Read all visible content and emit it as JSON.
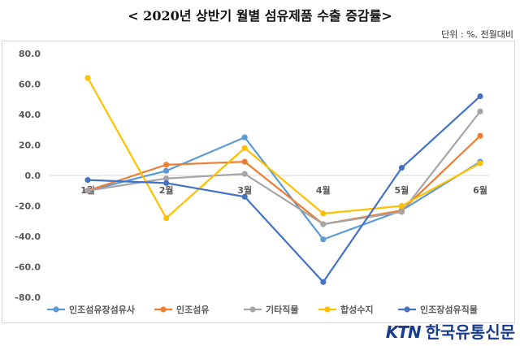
{
  "chart_data": {
    "type": "line",
    "title": "< 2020년 상반기 월별 섬유제품 수출 증감률>",
    "unit_note": "단위 : %, 전월대비",
    "categories": [
      "1월",
      "2월",
      "3월",
      "4월",
      "5월",
      "6월"
    ],
    "ylim": [
      -80,
      80
    ],
    "yticks": [
      "80.0",
      "60.0",
      "40.0",
      "20.0",
      "0.0",
      "-20.0",
      "-40.0",
      "-60.0",
      "-80.0"
    ],
    "ytick_values": [
      80,
      60,
      40,
      20,
      0,
      -20,
      -40,
      -60,
      -80
    ],
    "grid": false,
    "legend_position": "bottom",
    "series": [
      {
        "name": "인조섬유장섬유사",
        "color": "#5B9BD5",
        "values": [
          -10,
          3,
          25,
          -42,
          -23,
          9
        ]
      },
      {
        "name": "인조섬유",
        "color": "#ED7D31",
        "values": [
          -10,
          7,
          9,
          -32,
          -23,
          26
        ]
      },
      {
        "name": "기타직물",
        "color": "#A5A5A5",
        "values": [
          -10,
          -2,
          1,
          -32,
          -24,
          42
        ]
      },
      {
        "name": "합성수지",
        "color": "#FFC000",
        "values": [
          64,
          -28,
          18,
          -25,
          -20,
          8
        ]
      },
      {
        "name": "인조장섬유직물",
        "color": "#4472C4",
        "values": [
          -3,
          -5,
          -14,
          -70,
          5,
          52
        ]
      }
    ]
  },
  "logo": {
    "brand": "KTN",
    "name": "한국유통신문"
  }
}
